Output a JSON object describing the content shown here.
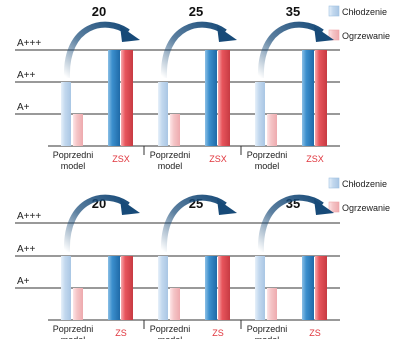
{
  "colors": {
    "cooling_prev": "#c2d8ee",
    "cooling_new": "#3c8fcd",
    "heating_prev": "#f4c4c6",
    "heating_new": "#e8555c",
    "zs_text": "#e0343c",
    "arrow": "#174a78",
    "grid": "#333333"
  },
  "chart_data": [
    {
      "type": "bar",
      "y_tick_labels": [
        "A+",
        "A++",
        "A+++"
      ],
      "ylim": [
        "A+",
        "A+++"
      ],
      "grid": true,
      "legend": {
        "position": "top-right",
        "entries": [
          "Chłodzenie",
          "Ogrzewanie"
        ]
      },
      "groups": [
        {
          "label": "20",
          "categories": [
            "Poprzedni model",
            "ZSX"
          ],
          "series": [
            {
              "name": "Chłodzenie",
              "values": [
                "A++",
                "A+++"
              ]
            },
            {
              "name": "Ogrzewanie",
              "values": [
                "A+",
                "A+++"
              ]
            }
          ]
        },
        {
          "label": "25",
          "categories": [
            "Poprzedni model",
            "ZSX"
          ],
          "series": [
            {
              "name": "Chłodzenie",
              "values": [
                "A++",
                "A+++"
              ]
            },
            {
              "name": "Ogrzewanie",
              "values": [
                "A+",
                "A+++"
              ]
            }
          ]
        },
        {
          "label": "35",
          "categories": [
            "Poprzedni model",
            "ZSX"
          ],
          "series": [
            {
              "name": "Chłodzenie",
              "values": [
                "A++",
                "A+++"
              ]
            },
            {
              "name": "Ogrzewanie",
              "values": [
                "A+",
                "A+++"
              ]
            }
          ]
        }
      ]
    },
    {
      "type": "bar",
      "y_tick_labels": [
        "A+",
        "A++",
        "A+++"
      ],
      "ylim": [
        "A+",
        "A+++"
      ],
      "grid": true,
      "legend": {
        "position": "top-right",
        "entries": [
          "Chłodzenie",
          "Ogrzewanie"
        ]
      },
      "groups": [
        {
          "label": "20",
          "categories": [
            "Poprzedni model",
            "ZS"
          ],
          "series": [
            {
              "name": "Chłodzenie",
              "values": [
                "A++",
                "A++"
              ]
            },
            {
              "name": "Ogrzewanie",
              "values": [
                "A+",
                "A++"
              ]
            }
          ]
        },
        {
          "label": "25",
          "categories": [
            "Poprzedni model",
            "ZS"
          ],
          "series": [
            {
              "name": "Chłodzenie",
              "values": [
                "A++",
                "A++"
              ]
            },
            {
              "name": "Ogrzewanie",
              "values": [
                "A+",
                "A++"
              ]
            }
          ]
        },
        {
          "label": "35",
          "categories": [
            "Poprzedni model",
            "ZS"
          ],
          "series": [
            {
              "name": "Chłodzenie",
              "values": [
                "A++",
                "A++"
              ]
            },
            {
              "name": "Ogrzewanie",
              "values": [
                "A+",
                "A++"
              ]
            }
          ]
        }
      ]
    }
  ]
}
